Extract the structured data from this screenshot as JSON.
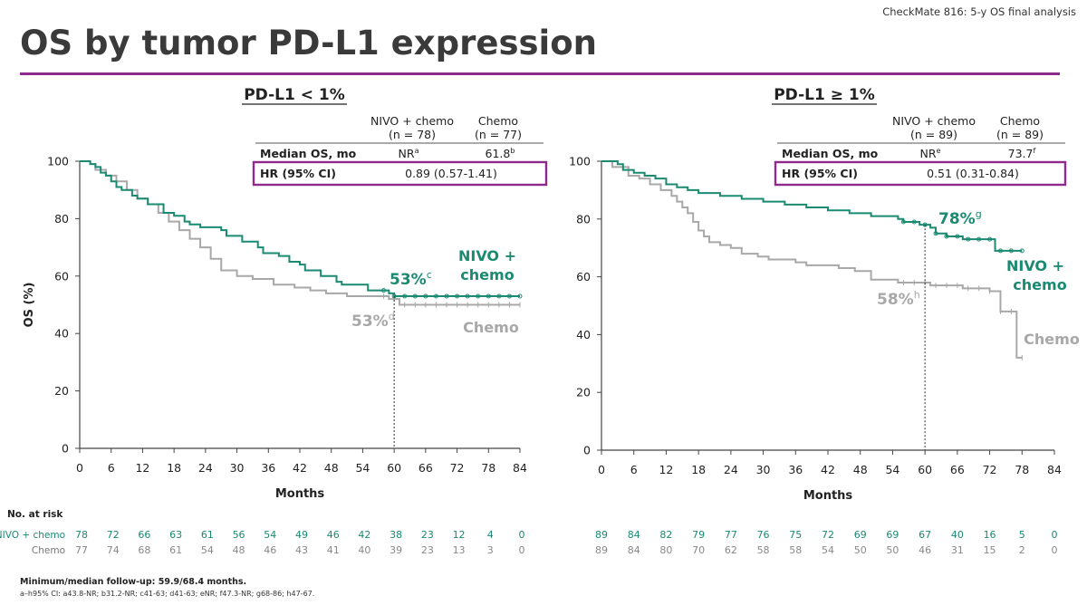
{
  "header": {
    "tag": "CheckMate 816: 5-y OS final analysis",
    "title": "OS by tumor PD-L1 expression"
  },
  "colors": {
    "accent": "#8e2a8b",
    "nivo": "#1a8a72",
    "chemo": "#a8a8a8",
    "axis": "#444444"
  },
  "risk_header": "No. at risk",
  "footnotes": {
    "line1": "Minimum/median follow-up: 59.9/68.4 months.",
    "line2": "a–h95% CI: a43.8-NR; b31.2-NR; c41-63; d41-63; eNR; f47.3-NR; g68-86; h47-67."
  },
  "chart_data": [
    {
      "type": "line",
      "panel_title": "PD-L1 < 1%",
      "xlabel": "Months",
      "ylabel": "OS (%)",
      "xlim": [
        0,
        84
      ],
      "ylim": [
        0,
        100
      ],
      "xticks": [
        0,
        6,
        12,
        18,
        24,
        30,
        36,
        42,
        48,
        54,
        60,
        66,
        72,
        78,
        84
      ],
      "yticks": [
        0,
        20,
        40,
        60,
        80,
        100
      ],
      "table": {
        "col_headers": [
          [
            "NIVO + chemo",
            "(n = 78)"
          ],
          [
            "Chemo",
            "(n = 77)"
          ]
        ],
        "median_label": "Median OS, mo",
        "median_values": [
          "NR",
          "61.8"
        ],
        "median_sup": [
          "a",
          "b"
        ],
        "hr_label": "HR (95% CI)",
        "hr_value": "0.89 (0.57-1.41)"
      },
      "annotations": {
        "nivo_pct": "53%",
        "nivo_sup": "c",
        "chemo_pct": "53%",
        "chemo_sup": "d",
        "nivo_label": [
          "NIVO +",
          "chemo"
        ],
        "chemo_label": "Chemo",
        "marker_x": 60
      },
      "series": [
        {
          "name": "NIVO + chemo",
          "x": [
            0,
            1,
            2,
            3,
            4,
            5,
            6,
            7,
            8,
            10,
            11,
            13,
            16,
            18,
            20,
            21,
            23,
            27,
            28,
            31,
            34,
            35,
            38,
            40,
            42,
            43,
            46,
            49,
            50,
            55,
            59,
            60,
            84
          ],
          "y": [
            100,
            100,
            99,
            98,
            96,
            95,
            93,
            91,
            90,
            88,
            87,
            85,
            82,
            81,
            79,
            78,
            77,
            76,
            74,
            72,
            70,
            68,
            67,
            65,
            64,
            62,
            60,
            58,
            57,
            55,
            54,
            53,
            53
          ],
          "risk": [
            78,
            72,
            66,
            63,
            61,
            56,
            54,
            49,
            46,
            42,
            38,
            23,
            12,
            4,
            0
          ]
        },
        {
          "name": "Chemo",
          "x": [
            0,
            2,
            3,
            5,
            7,
            9,
            11,
            13,
            15,
            17,
            19,
            21,
            23,
            25,
            27,
            30,
            33,
            37,
            41,
            44,
            47,
            51,
            55,
            59,
            61,
            84
          ],
          "y": [
            100,
            99,
            97,
            95,
            93,
            90,
            87,
            85,
            82,
            79,
            76,
            73,
            70,
            66,
            62,
            60,
            59,
            57,
            56,
            55,
            54,
            53,
            53,
            52,
            50,
            50
          ],
          "risk": [
            77,
            74,
            68,
            61,
            54,
            48,
            46,
            43,
            41,
            40,
            39,
            23,
            13,
            3,
            0
          ]
        }
      ]
    },
    {
      "type": "line",
      "panel_title": "PD-L1 ≥ 1%",
      "xlabel": "Months",
      "ylabel": "",
      "xlim": [
        0,
        84
      ],
      "ylim": [
        0,
        100
      ],
      "xticks": [
        0,
        6,
        12,
        18,
        24,
        30,
        36,
        42,
        48,
        54,
        60,
        66,
        72,
        78,
        84
      ],
      "yticks": [
        0,
        20,
        40,
        60,
        80,
        100
      ],
      "table": {
        "col_headers": [
          [
            "NIVO + chemo",
            "(n = 89)"
          ],
          [
            "Chemo",
            "(n = 89)"
          ]
        ],
        "median_label": "Median OS, mo",
        "median_values": [
          "NR",
          "73.7"
        ],
        "median_sup": [
          "e",
          "f"
        ],
        "hr_label": "HR (95% CI)",
        "hr_value": "0.51 (0.31-0.84)"
      },
      "annotations": {
        "nivo_pct": "78%",
        "nivo_sup": "g",
        "chemo_pct": "58%",
        "chemo_sup": "h",
        "nivo_label": [
          "NIVO +",
          "chemo"
        ],
        "chemo_label": "Chemo",
        "marker_x": 60
      },
      "series": [
        {
          "name": "NIVO + chemo",
          "x": [
            0,
            3,
            4,
            6,
            8,
            10,
            12,
            14,
            16,
            18,
            22,
            26,
            30,
            34,
            38,
            42,
            46,
            50,
            55,
            56,
            59,
            61,
            62,
            64,
            67,
            72,
            73,
            78
          ],
          "y": [
            100,
            99,
            97,
            96,
            95,
            94,
            92,
            91,
            90,
            89,
            88,
            87,
            86,
            85,
            84,
            83,
            82,
            81,
            80,
            79,
            78,
            77,
            75,
            74,
            73,
            73,
            69,
            69
          ],
          "risk": [
            89,
            84,
            82,
            79,
            77,
            76,
            75,
            72,
            69,
            69,
            67,
            40,
            16,
            5,
            0
          ]
        },
        {
          "name": "Chemo",
          "x": [
            0,
            2,
            5,
            7,
            9,
            11,
            13,
            14,
            15,
            16,
            17,
            18,
            19,
            20,
            22,
            24,
            26,
            29,
            31,
            36,
            38,
            44,
            47,
            50,
            55,
            61,
            67,
            72,
            74,
            77,
            78
          ],
          "y": [
            100,
            98,
            95,
            94,
            92,
            90,
            88,
            86,
            84,
            82,
            79,
            76,
            74,
            72,
            71,
            70,
            68,
            67,
            66,
            65,
            64,
            63,
            62,
            59,
            58,
            57,
            56,
            55,
            48,
            32,
            32
          ],
          "risk": [
            89,
            84,
            80,
            70,
            62,
            58,
            58,
            54,
            50,
            50,
            46,
            31,
            15,
            2,
            0
          ]
        }
      ]
    }
  ]
}
